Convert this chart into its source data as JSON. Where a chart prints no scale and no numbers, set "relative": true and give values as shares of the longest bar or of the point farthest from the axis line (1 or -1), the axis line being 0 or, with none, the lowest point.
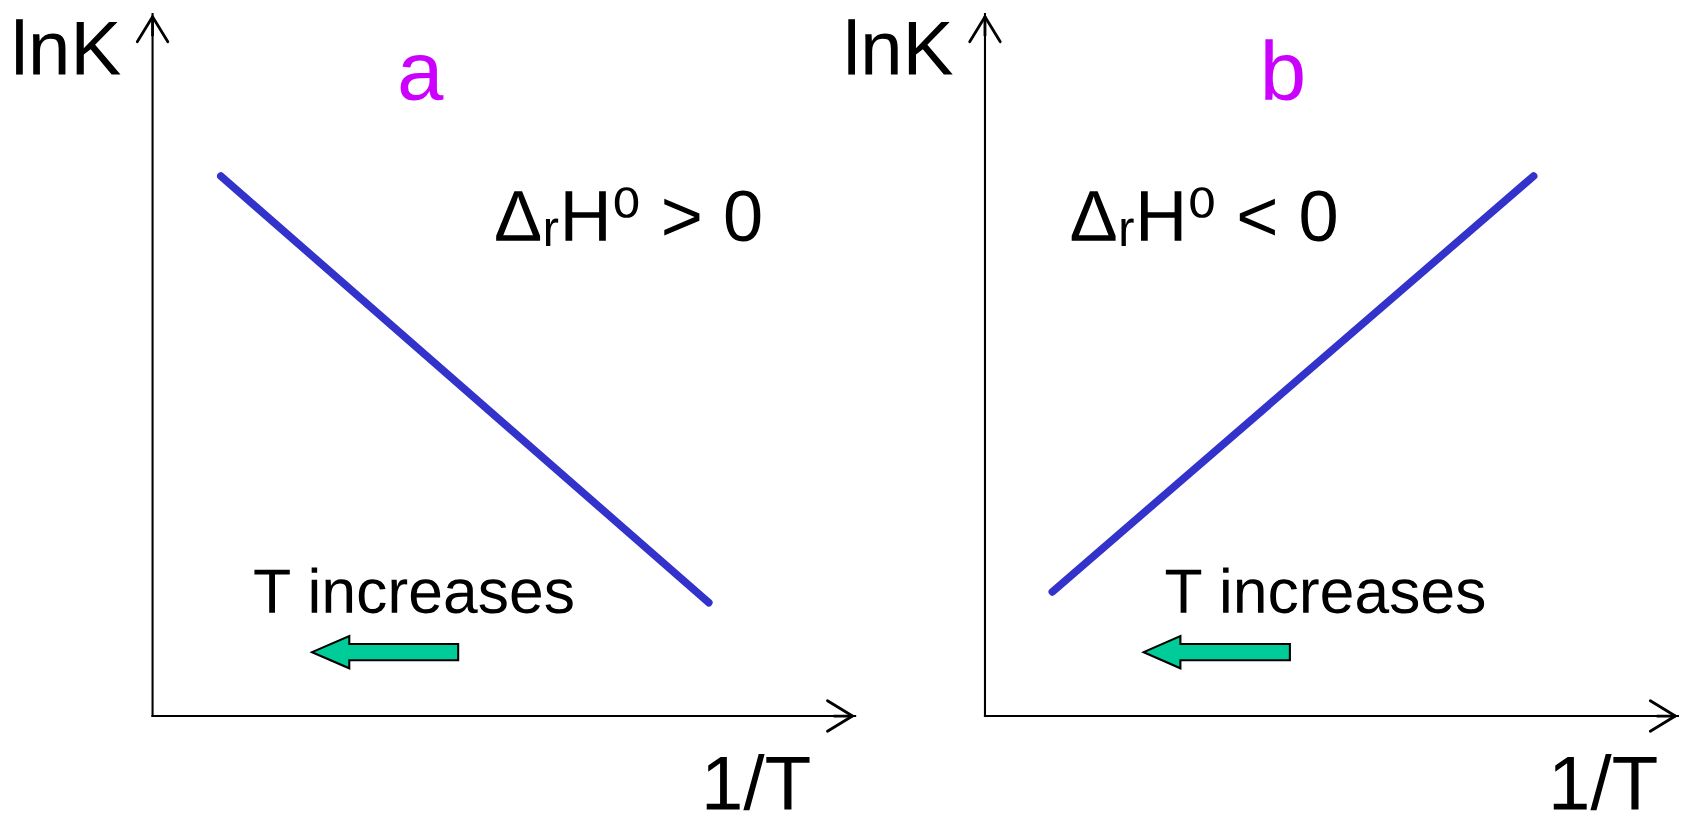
{
  "chart_data": [
    {
      "type": "line",
      "title": "a",
      "ylabel": "lnK",
      "xlabel": "1/T",
      "categories": [
        null,
        null
      ],
      "relative": true,
      "line_style": "solid",
      "series": [
        {
          "color": "#3333cc",
          "values": [
            1,
            0.21
          ]
        }
      ],
      "annotations": [
        "ΔᵣH⁰ > 0",
        "T increases"
      ]
    },
    {
      "type": "line",
      "title": "b",
      "ylabel": "lnK",
      "xlabel": "1/T",
      "categories": [
        null,
        null
      ],
      "relative": true,
      "line_style": "solid",
      "series": [
        {
          "color": "#3333cc",
          "values": [
            0.23,
            1
          ]
        }
      ],
      "annotations": [
        "ΔᵣH⁰ < 0",
        "T increases"
      ]
    }
  ]
}
